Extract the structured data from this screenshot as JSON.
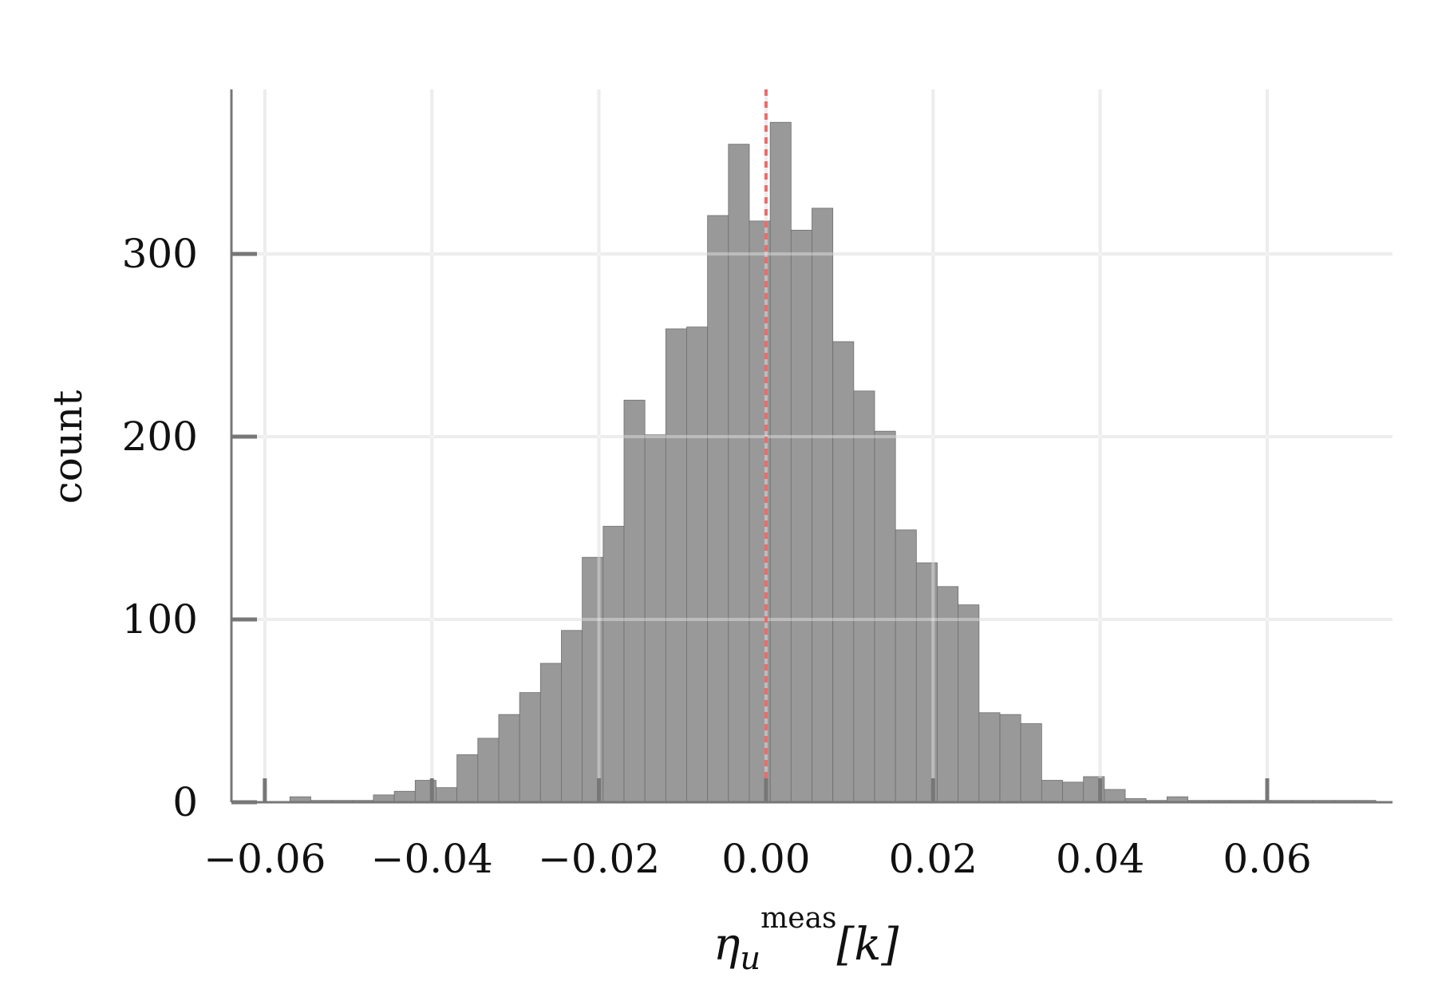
{
  "chart_data": {
    "type": "bar",
    "subtype": "histogram",
    "title": "",
    "xlabel": {
      "base": "η",
      "subscript": "u",
      "superscript": "meas",
      "suffix": "[k]"
    },
    "ylabel": "count",
    "xlim": [
      -0.064,
      0.075
    ],
    "ylim": [
      0,
      390
    ],
    "grid": true,
    "legend": "none",
    "bin_width": 0.0025,
    "xticks": [
      -0.06,
      -0.04,
      -0.02,
      0.0,
      0.02,
      0.04,
      0.06
    ],
    "xtick_labels": [
      "−0.06",
      "−0.04",
      "−0.02",
      "0.00",
      "0.02",
      "0.04",
      "0.06"
    ],
    "yticks": [
      0,
      100,
      200,
      300
    ],
    "ytick_labels": [
      "0",
      "100",
      "200",
      "300"
    ],
    "bins": [
      {
        "x0": -0.057,
        "count": 3
      },
      {
        "x0": -0.0545,
        "count": 1
      },
      {
        "x0": -0.052,
        "count": 1
      },
      {
        "x0": -0.0495,
        "count": 1
      },
      {
        "x0": -0.047,
        "count": 4
      },
      {
        "x0": -0.0445,
        "count": 6
      },
      {
        "x0": -0.042,
        "count": 12
      },
      {
        "x0": -0.0395,
        "count": 8
      },
      {
        "x0": -0.037,
        "count": 26
      },
      {
        "x0": -0.0345,
        "count": 35
      },
      {
        "x0": -0.032,
        "count": 48
      },
      {
        "x0": -0.0295,
        "count": 60
      },
      {
        "x0": -0.027,
        "count": 76
      },
      {
        "x0": -0.0245,
        "count": 94
      },
      {
        "x0": -0.022,
        "count": 134
      },
      {
        "x0": -0.0195,
        "count": 151
      },
      {
        "x0": -0.017,
        "count": 220
      },
      {
        "x0": -0.0145,
        "count": 201
      },
      {
        "x0": -0.012,
        "count": 259
      },
      {
        "x0": -0.0095,
        "count": 260
      },
      {
        "x0": -0.007,
        "count": 321
      },
      {
        "x0": -0.0045,
        "count": 360
      },
      {
        "x0": -0.002,
        "count": 318
      },
      {
        "x0": 0.0005,
        "count": 372
      },
      {
        "x0": 0.003,
        "count": 313
      },
      {
        "x0": 0.0055,
        "count": 325
      },
      {
        "x0": 0.008,
        "count": 252
      },
      {
        "x0": 0.0105,
        "count": 225
      },
      {
        "x0": 0.013,
        "count": 203
      },
      {
        "x0": 0.0155,
        "count": 149
      },
      {
        "x0": 0.018,
        "count": 131
      },
      {
        "x0": 0.0205,
        "count": 118
      },
      {
        "x0": 0.023,
        "count": 108
      },
      {
        "x0": 0.0255,
        "count": 49
      },
      {
        "x0": 0.028,
        "count": 48
      },
      {
        "x0": 0.0305,
        "count": 43
      },
      {
        "x0": 0.033,
        "count": 12
      },
      {
        "x0": 0.0355,
        "count": 11
      },
      {
        "x0": 0.038,
        "count": 14
      },
      {
        "x0": 0.0405,
        "count": 7
      },
      {
        "x0": 0.043,
        "count": 2
      },
      {
        "x0": 0.0455,
        "count": 1
      },
      {
        "x0": 0.048,
        "count": 3
      },
      {
        "x0": 0.0505,
        "count": 1
      },
      {
        "x0": 0.053,
        "count": 1
      },
      {
        "x0": 0.0555,
        "count": 1
      },
      {
        "x0": 0.058,
        "count": 1
      },
      {
        "x0": 0.0605,
        "count": 1
      },
      {
        "x0": 0.063,
        "count": 1
      },
      {
        "x0": 0.0655,
        "count": 1
      },
      {
        "x0": 0.068,
        "count": 1
      },
      {
        "x0": 0.0705,
        "count": 1
      }
    ],
    "reference_line": {
      "x": 0.0,
      "color": "#ec6b6b",
      "style": "dotted"
    },
    "bar_color": "#999999"
  }
}
